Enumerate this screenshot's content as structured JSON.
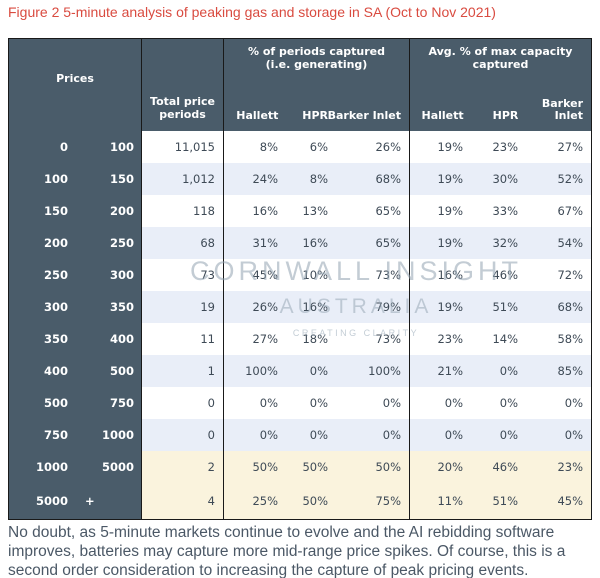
{
  "title": "Figure 2 5-minute analysis of peaking gas and storage in SA (Oct to Nov 2021)",
  "table": {
    "prices_header": "Prices",
    "total_header": "Total price periods",
    "group1_header": "% of periods captured (i.e. generating)",
    "group2_header": "Avg. % of max capacity captured",
    "sub_headers": [
      "Hallett",
      "HPR",
      "Barker Inlet"
    ],
    "rows": [
      {
        "low": "0",
        "high": "100",
        "total": "11,015",
        "pc": [
          "8%",
          "6%",
          "26%"
        ],
        "cap": [
          "19%",
          "23%",
          "27%"
        ],
        "highlight": false
      },
      {
        "low": "100",
        "high": "150",
        "total": "1,012",
        "pc": [
          "24%",
          "8%",
          "68%"
        ],
        "cap": [
          "19%",
          "30%",
          "52%"
        ],
        "highlight": false
      },
      {
        "low": "150",
        "high": "200",
        "total": "118",
        "pc": [
          "16%",
          "13%",
          "65%"
        ],
        "cap": [
          "19%",
          "33%",
          "67%"
        ],
        "highlight": false
      },
      {
        "low": "200",
        "high": "250",
        "total": "68",
        "pc": [
          "31%",
          "16%",
          "65%"
        ],
        "cap": [
          "19%",
          "32%",
          "54%"
        ],
        "highlight": false
      },
      {
        "low": "250",
        "high": "300",
        "total": "73",
        "pc": [
          "45%",
          "10%",
          "73%"
        ],
        "cap": [
          "16%",
          "46%",
          "72%"
        ],
        "highlight": false
      },
      {
        "low": "300",
        "high": "350",
        "total": "19",
        "pc": [
          "26%",
          "16%",
          "79%"
        ],
        "cap": [
          "19%",
          "51%",
          "68%"
        ],
        "highlight": false
      },
      {
        "low": "350",
        "high": "400",
        "total": "11",
        "pc": [
          "27%",
          "18%",
          "73%"
        ],
        "cap": [
          "23%",
          "14%",
          "58%"
        ],
        "highlight": false
      },
      {
        "low": "400",
        "high": "500",
        "total": "1",
        "pc": [
          "100%",
          "0%",
          "100%"
        ],
        "cap": [
          "21%",
          "0%",
          "85%"
        ],
        "highlight": false
      },
      {
        "low": "500",
        "high": "750",
        "total": "0",
        "pc": [
          "0%",
          "0%",
          "0%"
        ],
        "cap": [
          "0%",
          "0%",
          "0%"
        ],
        "highlight": false
      },
      {
        "low": "750",
        "high": "1000",
        "total": "0",
        "pc": [
          "0%",
          "0%",
          "0%"
        ],
        "cap": [
          "0%",
          "0%",
          "0%"
        ],
        "highlight": false
      },
      {
        "low": "1000",
        "high": "5000",
        "total": "2",
        "pc": [
          "50%",
          "50%",
          "50%"
        ],
        "cap": [
          "20%",
          "46%",
          "23%"
        ],
        "highlight": true
      },
      {
        "low": "5000",
        "high": "+",
        "total": "4",
        "pc": [
          "25%",
          "50%",
          "75%"
        ],
        "cap": [
          "11%",
          "51%",
          "45%"
        ],
        "highlight": true
      }
    ]
  },
  "watermark": {
    "line1": "CORNWALL INSIGHT",
    "line2": "AUSTRALIA",
    "line3": "CREATING CLARITY"
  },
  "footer": "No doubt, as 5-minute markets continue to evolve and the AI rebidding software improves, batteries may capture more mid-range price spikes. Of course, this is a second order consideration to increasing the capture of peak pricing events.",
  "colors": {
    "title": "#d94b40",
    "header_bg": "#4a5c6a",
    "row_alt": "#e9eef8",
    "row_highlight": "#faf3dd",
    "border": "#191919",
    "text": "#3e4a56"
  }
}
